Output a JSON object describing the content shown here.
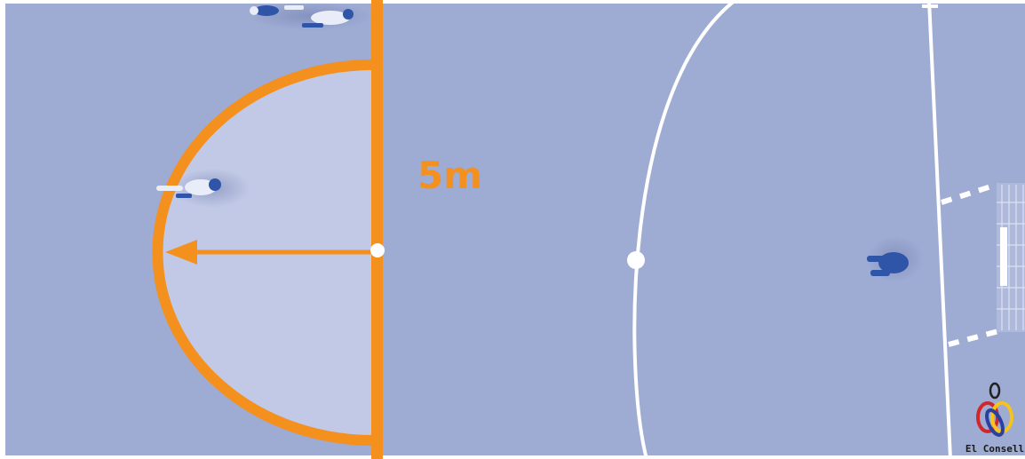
{
  "court": {
    "floor_color": "#9eabd3",
    "zone_fill_color": "#c2c9e6",
    "accent_color": "#f4901e",
    "line_color": "#ffffff",
    "player_color": "#2f55a8",
    "distance_label": "5m"
  },
  "logo": {
    "text": "El Consell",
    "ring_colors": [
      "#d3262a",
      "#2b3f9c",
      "#f7c318"
    ],
    "icon": "el-consell-logo-icon"
  }
}
